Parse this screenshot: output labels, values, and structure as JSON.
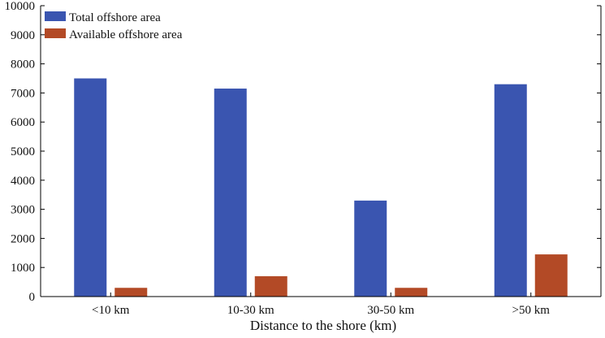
{
  "chart_data": {
    "type": "bar",
    "categories": [
      "<10 km",
      "10-30 km",
      "30-50 km",
      ">50 km"
    ],
    "series": [
      {
        "name": "Total offshore area",
        "values": [
          7500,
          7150,
          3300,
          7300
        ],
        "color": "#3a55b0"
      },
      {
        "name": "Available offshore area",
        "values": [
          300,
          700,
          300,
          1450
        ],
        "color": "#b34a26"
      }
    ],
    "xlabel": "Distance to the shore (km)",
    "ylabel": "",
    "title": "",
    "ylim": [
      0,
      10000
    ],
    "yticks": [
      0,
      1000,
      2000,
      3000,
      4000,
      5000,
      6000,
      7000,
      8000,
      9000,
      10000
    ],
    "grid": false,
    "legend_position": "top-left"
  }
}
